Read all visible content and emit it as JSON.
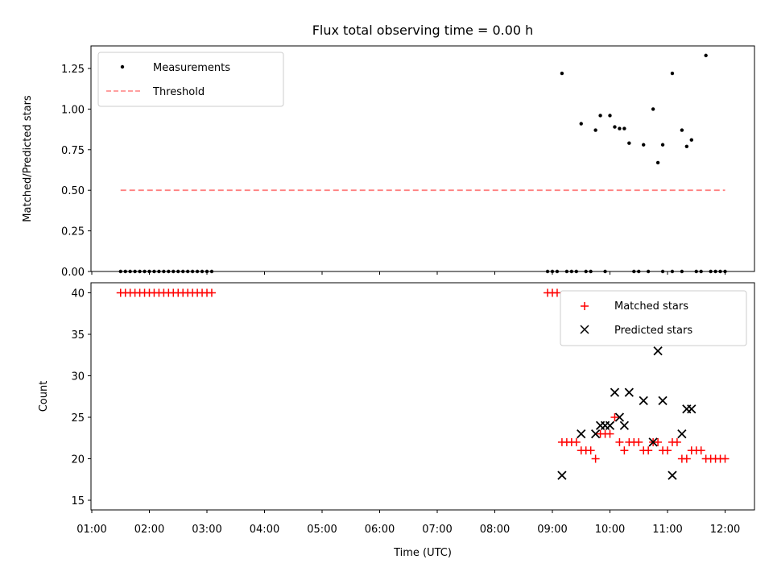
{
  "title": "Flux total observing time = 0.00 h",
  "colors": {
    "measurement": "#000000",
    "threshold": "#ff8080",
    "matched": "#ff0000",
    "predicted": "#000000"
  },
  "chart_data": [
    {
      "type": "scatter",
      "ylabel": "Matched/Predicted stars",
      "ylim": [
        0,
        1.4
      ],
      "yticks": [
        "0.00",
        "0.25",
        "0.50",
        "0.75",
        "1.00",
        "1.25"
      ],
      "legend": {
        "placement": "top-left",
        "entries": [
          "Measurements",
          "Threshold"
        ]
      },
      "threshold": {
        "name": "Threshold",
        "value": 0.5,
        "x_start": "01:30",
        "x_end": "12:00"
      },
      "series": [
        {
          "name": "Measurements",
          "points": [
            [
              "01:30",
              0
            ],
            [
              "01:35",
              0
            ],
            [
              "01:40",
              0
            ],
            [
              "01:45",
              0
            ],
            [
              "01:50",
              0
            ],
            [
              "01:55",
              0
            ],
            [
              "02:00",
              0
            ],
            [
              "02:05",
              0
            ],
            [
              "02:10",
              0
            ],
            [
              "02:15",
              0
            ],
            [
              "02:20",
              0
            ],
            [
              "02:25",
              0
            ],
            [
              "02:30",
              0
            ],
            [
              "02:35",
              0
            ],
            [
              "02:40",
              0
            ],
            [
              "02:45",
              0
            ],
            [
              "02:50",
              0
            ],
            [
              "02:55",
              0
            ],
            [
              "03:00",
              0
            ],
            [
              "03:05",
              0
            ],
            [
              "08:55",
              0
            ],
            [
              "09:00",
              0
            ],
            [
              "09:05",
              0
            ],
            [
              "09:15",
              0
            ],
            [
              "09:20",
              0
            ],
            [
              "09:25",
              0
            ],
            [
              "09:35",
              0
            ],
            [
              "09:40",
              0
            ],
            [
              "09:55",
              0
            ],
            [
              "10:25",
              0
            ],
            [
              "10:30",
              0
            ],
            [
              "10:40",
              0
            ],
            [
              "10:55",
              0
            ],
            [
              "11:05",
              0
            ],
            [
              "11:15",
              0
            ],
            [
              "11:30",
              0
            ],
            [
              "11:35",
              0
            ],
            [
              "11:45",
              0
            ],
            [
              "11:50",
              0
            ],
            [
              "11:55",
              0
            ],
            [
              "12:00",
              0
            ],
            [
              "09:10",
              1.22
            ],
            [
              "09:30",
              0.91
            ],
            [
              "09:45",
              0.87
            ],
            [
              "09:50",
              0.96
            ],
            [
              "10:00",
              0.96
            ],
            [
              "10:05",
              0.89
            ],
            [
              "10:10",
              0.88
            ],
            [
              "10:15",
              0.88
            ],
            [
              "10:20",
              0.79
            ],
            [
              "10:35",
              0.78
            ],
            [
              "10:45",
              1.0
            ],
            [
              "10:50",
              0.67
            ],
            [
              "10:55",
              0.78
            ],
            [
              "11:05",
              1.22
            ],
            [
              "11:15",
              0.87
            ],
            [
              "11:20",
              0.77
            ],
            [
              "11:25",
              0.81
            ],
            [
              "11:40",
              1.33
            ]
          ]
        }
      ]
    },
    {
      "type": "scatter",
      "xlabel": "Time (UTC)",
      "ylabel": "Count",
      "ylim": [
        13.7,
        41.2
      ],
      "yticks": [
        "15",
        "20",
        "25",
        "30",
        "35",
        "40"
      ],
      "xticks": [
        "01:00",
        "02:00",
        "03:00",
        "04:00",
        "05:00",
        "06:00",
        "07:00",
        "08:00",
        "09:00",
        "10:00",
        "11:00",
        "12:00"
      ],
      "legend": {
        "placement": "top-right",
        "entries": [
          "Matched stars",
          "Predicted stars"
        ]
      },
      "series": [
        {
          "name": "Matched stars",
          "marker": "+",
          "points": [
            [
              "01:30",
              40
            ],
            [
              "01:35",
              40
            ],
            [
              "01:40",
              40
            ],
            [
              "01:45",
              40
            ],
            [
              "01:50",
              40
            ],
            [
              "01:55",
              40
            ],
            [
              "02:00",
              40
            ],
            [
              "02:05",
              40
            ],
            [
              "02:10",
              40
            ],
            [
              "02:15",
              40
            ],
            [
              "02:20",
              40
            ],
            [
              "02:25",
              40
            ],
            [
              "02:30",
              40
            ],
            [
              "02:35",
              40
            ],
            [
              "02:40",
              40
            ],
            [
              "02:45",
              40
            ],
            [
              "02:50",
              40
            ],
            [
              "02:55",
              40
            ],
            [
              "03:00",
              40
            ],
            [
              "03:05",
              40
            ],
            [
              "08:55",
              40
            ],
            [
              "09:00",
              40
            ],
            [
              "09:05",
              40
            ],
            [
              "09:10",
              22
            ],
            [
              "09:15",
              22
            ],
            [
              "09:20",
              22
            ],
            [
              "09:25",
              22
            ],
            [
              "09:30",
              21
            ],
            [
              "09:35",
              21
            ],
            [
              "09:40",
              21
            ],
            [
              "09:45",
              20
            ],
            [
              "09:50",
              23
            ],
            [
              "09:55",
              23
            ],
            [
              "10:00",
              23
            ],
            [
              "10:05",
              25
            ],
            [
              "10:10",
              22
            ],
            [
              "10:15",
              21
            ],
            [
              "10:20",
              22
            ],
            [
              "10:25",
              22
            ],
            [
              "10:30",
              22
            ],
            [
              "10:35",
              21
            ],
            [
              "10:40",
              21
            ],
            [
              "10:45",
              22
            ],
            [
              "10:50",
              22
            ],
            [
              "10:55",
              21
            ],
            [
              "11:00",
              21
            ],
            [
              "11:05",
              22
            ],
            [
              "11:10",
              22
            ],
            [
              "11:15",
              20
            ],
            [
              "11:20",
              20
            ],
            [
              "11:25",
              21
            ],
            [
              "11:30",
              21
            ],
            [
              "11:35",
              21
            ],
            [
              "11:40",
              20
            ],
            [
              "11:45",
              20
            ],
            [
              "11:50",
              20
            ],
            [
              "11:55",
              20
            ],
            [
              "12:00",
              20
            ]
          ]
        },
        {
          "name": "Predicted stars",
          "marker": "x",
          "points": [
            [
              "09:10",
              18
            ],
            [
              "09:30",
              23
            ],
            [
              "09:45",
              23
            ],
            [
              "09:50",
              24
            ],
            [
              "09:55",
              24
            ],
            [
              "10:00",
              24
            ],
            [
              "10:05",
              28
            ],
            [
              "10:10",
              25
            ],
            [
              "10:15",
              24
            ],
            [
              "10:20",
              28
            ],
            [
              "10:35",
              27
            ],
            [
              "10:45",
              22
            ],
            [
              "10:50",
              33
            ],
            [
              "10:55",
              27
            ],
            [
              "11:05",
              18
            ],
            [
              "11:15",
              23
            ],
            [
              "11:20",
              26
            ],
            [
              "11:25",
              26
            ]
          ]
        }
      ]
    }
  ]
}
